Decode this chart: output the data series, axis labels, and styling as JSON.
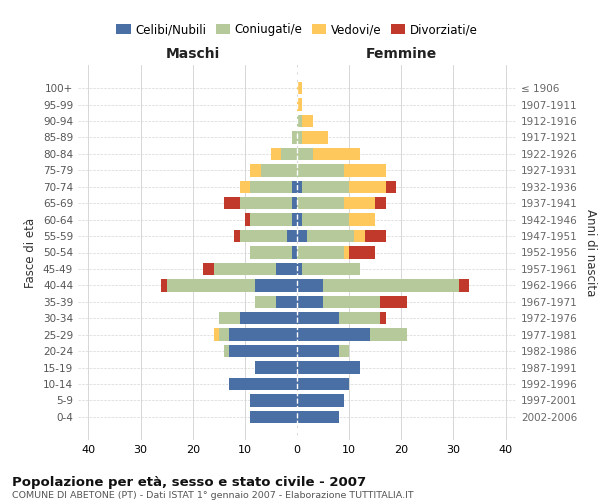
{
  "age_groups": [
    "0-4",
    "5-9",
    "10-14",
    "15-19",
    "20-24",
    "25-29",
    "30-34",
    "35-39",
    "40-44",
    "45-49",
    "50-54",
    "55-59",
    "60-64",
    "65-69",
    "70-74",
    "75-79",
    "80-84",
    "85-89",
    "90-94",
    "95-99",
    "100+"
  ],
  "birth_years": [
    "2002-2006",
    "1997-2001",
    "1992-1996",
    "1987-1991",
    "1982-1986",
    "1977-1981",
    "1972-1976",
    "1967-1971",
    "1962-1966",
    "1957-1961",
    "1952-1956",
    "1947-1951",
    "1942-1946",
    "1937-1941",
    "1932-1936",
    "1927-1931",
    "1922-1926",
    "1917-1921",
    "1912-1916",
    "1907-1911",
    "≤ 1906"
  ],
  "male": {
    "celibi": [
      9,
      9,
      13,
      8,
      13,
      13,
      11,
      4,
      8,
      4,
      1,
      2,
      1,
      1,
      1,
      0,
      0,
      0,
      0,
      0,
      0
    ],
    "coniugati": [
      0,
      0,
      0,
      0,
      1,
      2,
      4,
      4,
      17,
      12,
      8,
      9,
      8,
      10,
      8,
      7,
      3,
      1,
      0,
      0,
      0
    ],
    "vedovi": [
      0,
      0,
      0,
      0,
      0,
      1,
      0,
      0,
      0,
      0,
      0,
      0,
      0,
      0,
      2,
      2,
      2,
      0,
      0,
      0,
      0
    ],
    "divorziati": [
      0,
      0,
      0,
      0,
      0,
      0,
      0,
      0,
      1,
      2,
      0,
      1,
      1,
      3,
      0,
      0,
      0,
      0,
      0,
      0,
      0
    ]
  },
  "female": {
    "nubili": [
      8,
      9,
      10,
      12,
      8,
      14,
      8,
      5,
      5,
      1,
      0,
      2,
      1,
      0,
      1,
      0,
      0,
      0,
      0,
      0,
      0
    ],
    "coniugate": [
      0,
      0,
      0,
      0,
      2,
      7,
      8,
      11,
      26,
      11,
      9,
      9,
      9,
      9,
      9,
      9,
      3,
      1,
      1,
      0,
      0
    ],
    "vedove": [
      0,
      0,
      0,
      0,
      0,
      0,
      0,
      0,
      0,
      0,
      1,
      2,
      5,
      6,
      7,
      8,
      9,
      5,
      2,
      1,
      1
    ],
    "divorziate": [
      0,
      0,
      0,
      0,
      0,
      0,
      1,
      5,
      2,
      0,
      5,
      4,
      0,
      2,
      2,
      0,
      0,
      0,
      0,
      0,
      0
    ]
  },
  "colors": {
    "celibi": "#4a6fa5",
    "coniugati": "#b5c99a",
    "vedovi": "#ffc85c",
    "divorziati": "#c0392b"
  },
  "xlabel_left": "Maschi",
  "xlabel_right": "Femmine",
  "ylabel_left": "Fasce di età",
  "ylabel_right": "Anni di nascita",
  "title": "Popolazione per età, sesso e stato civile - 2007",
  "subtitle": "COMUNE DI ABETONE (PT) - Dati ISTAT 1° gennaio 2007 - Elaborazione TUTTITALIA.IT",
  "xlim": 42,
  "background_color": "#ffffff",
  "grid_color": "#cccccc",
  "legend_labels": [
    "Celibi/Nubili",
    "Coniugati/e",
    "Vedovi/e",
    "Divorziati/e"
  ]
}
